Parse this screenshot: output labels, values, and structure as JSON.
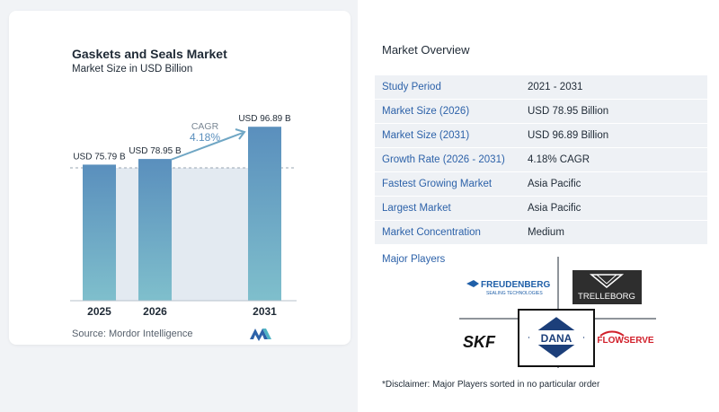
{
  "chart": {
    "title": "Gaskets and Seals Market",
    "subtitle": "Market Size in USD Billion",
    "cagr_label": "CAGR",
    "cagr_value": "4.18%",
    "source": "Source:  Mordor Intelligence"
  },
  "chart_data": {
    "type": "bar",
    "title": "Gaskets and Seals Market",
    "subtitle": "Market Size in USD Billion",
    "categories": [
      "2025",
      "2026",
      "2031"
    ],
    "values": [
      75.79,
      78.95,
      96.89
    ],
    "value_labels": [
      "USD 75.79 B",
      "USD 78.95 B",
      "USD 96.89 B"
    ],
    "ylim": [
      0,
      100
    ],
    "grid": false,
    "bar_color": "#5a8fbd",
    "annotation": "CAGR 4.18%"
  },
  "overview": {
    "title": "Market Overview",
    "rows": [
      {
        "label": "Study Period",
        "value": "2021 - 2031"
      },
      {
        "label": "Market Size (2026)",
        "value": "USD 78.95 Billion"
      },
      {
        "label": "Market Size (2031)",
        "value": "USD 96.89 Billion"
      },
      {
        "label": "Growth Rate (2026 - 2031)",
        "value": "4.18% CAGR"
      },
      {
        "label": "Fastest Growing Market",
        "value": "Asia Pacific"
      },
      {
        "label": "Largest Market",
        "value": "Asia Pacific"
      },
      {
        "label": "Market Concentration",
        "value": "Medium"
      }
    ]
  },
  "players": {
    "title": "Major Players",
    "logos": {
      "freudenberg": "FREUDENBERG",
      "freudenberg_sub": "SEALING TECHNOLOGIES",
      "trelleborg": "TRELLEBORG",
      "skf": "SKF",
      "dana": "DANA",
      "flowserve": "FLOWSERVE"
    },
    "disclaimer": "*Disclaimer: Major Players sorted in no particular order"
  },
  "colors": {
    "accent_blue": "#2d62a9",
    "bar": "#5a8fbd",
    "bar_gradient_bottom": "#7fbfcc",
    "shade_band": "#e3eaf1",
    "arrow": "#6fa6c4"
  }
}
